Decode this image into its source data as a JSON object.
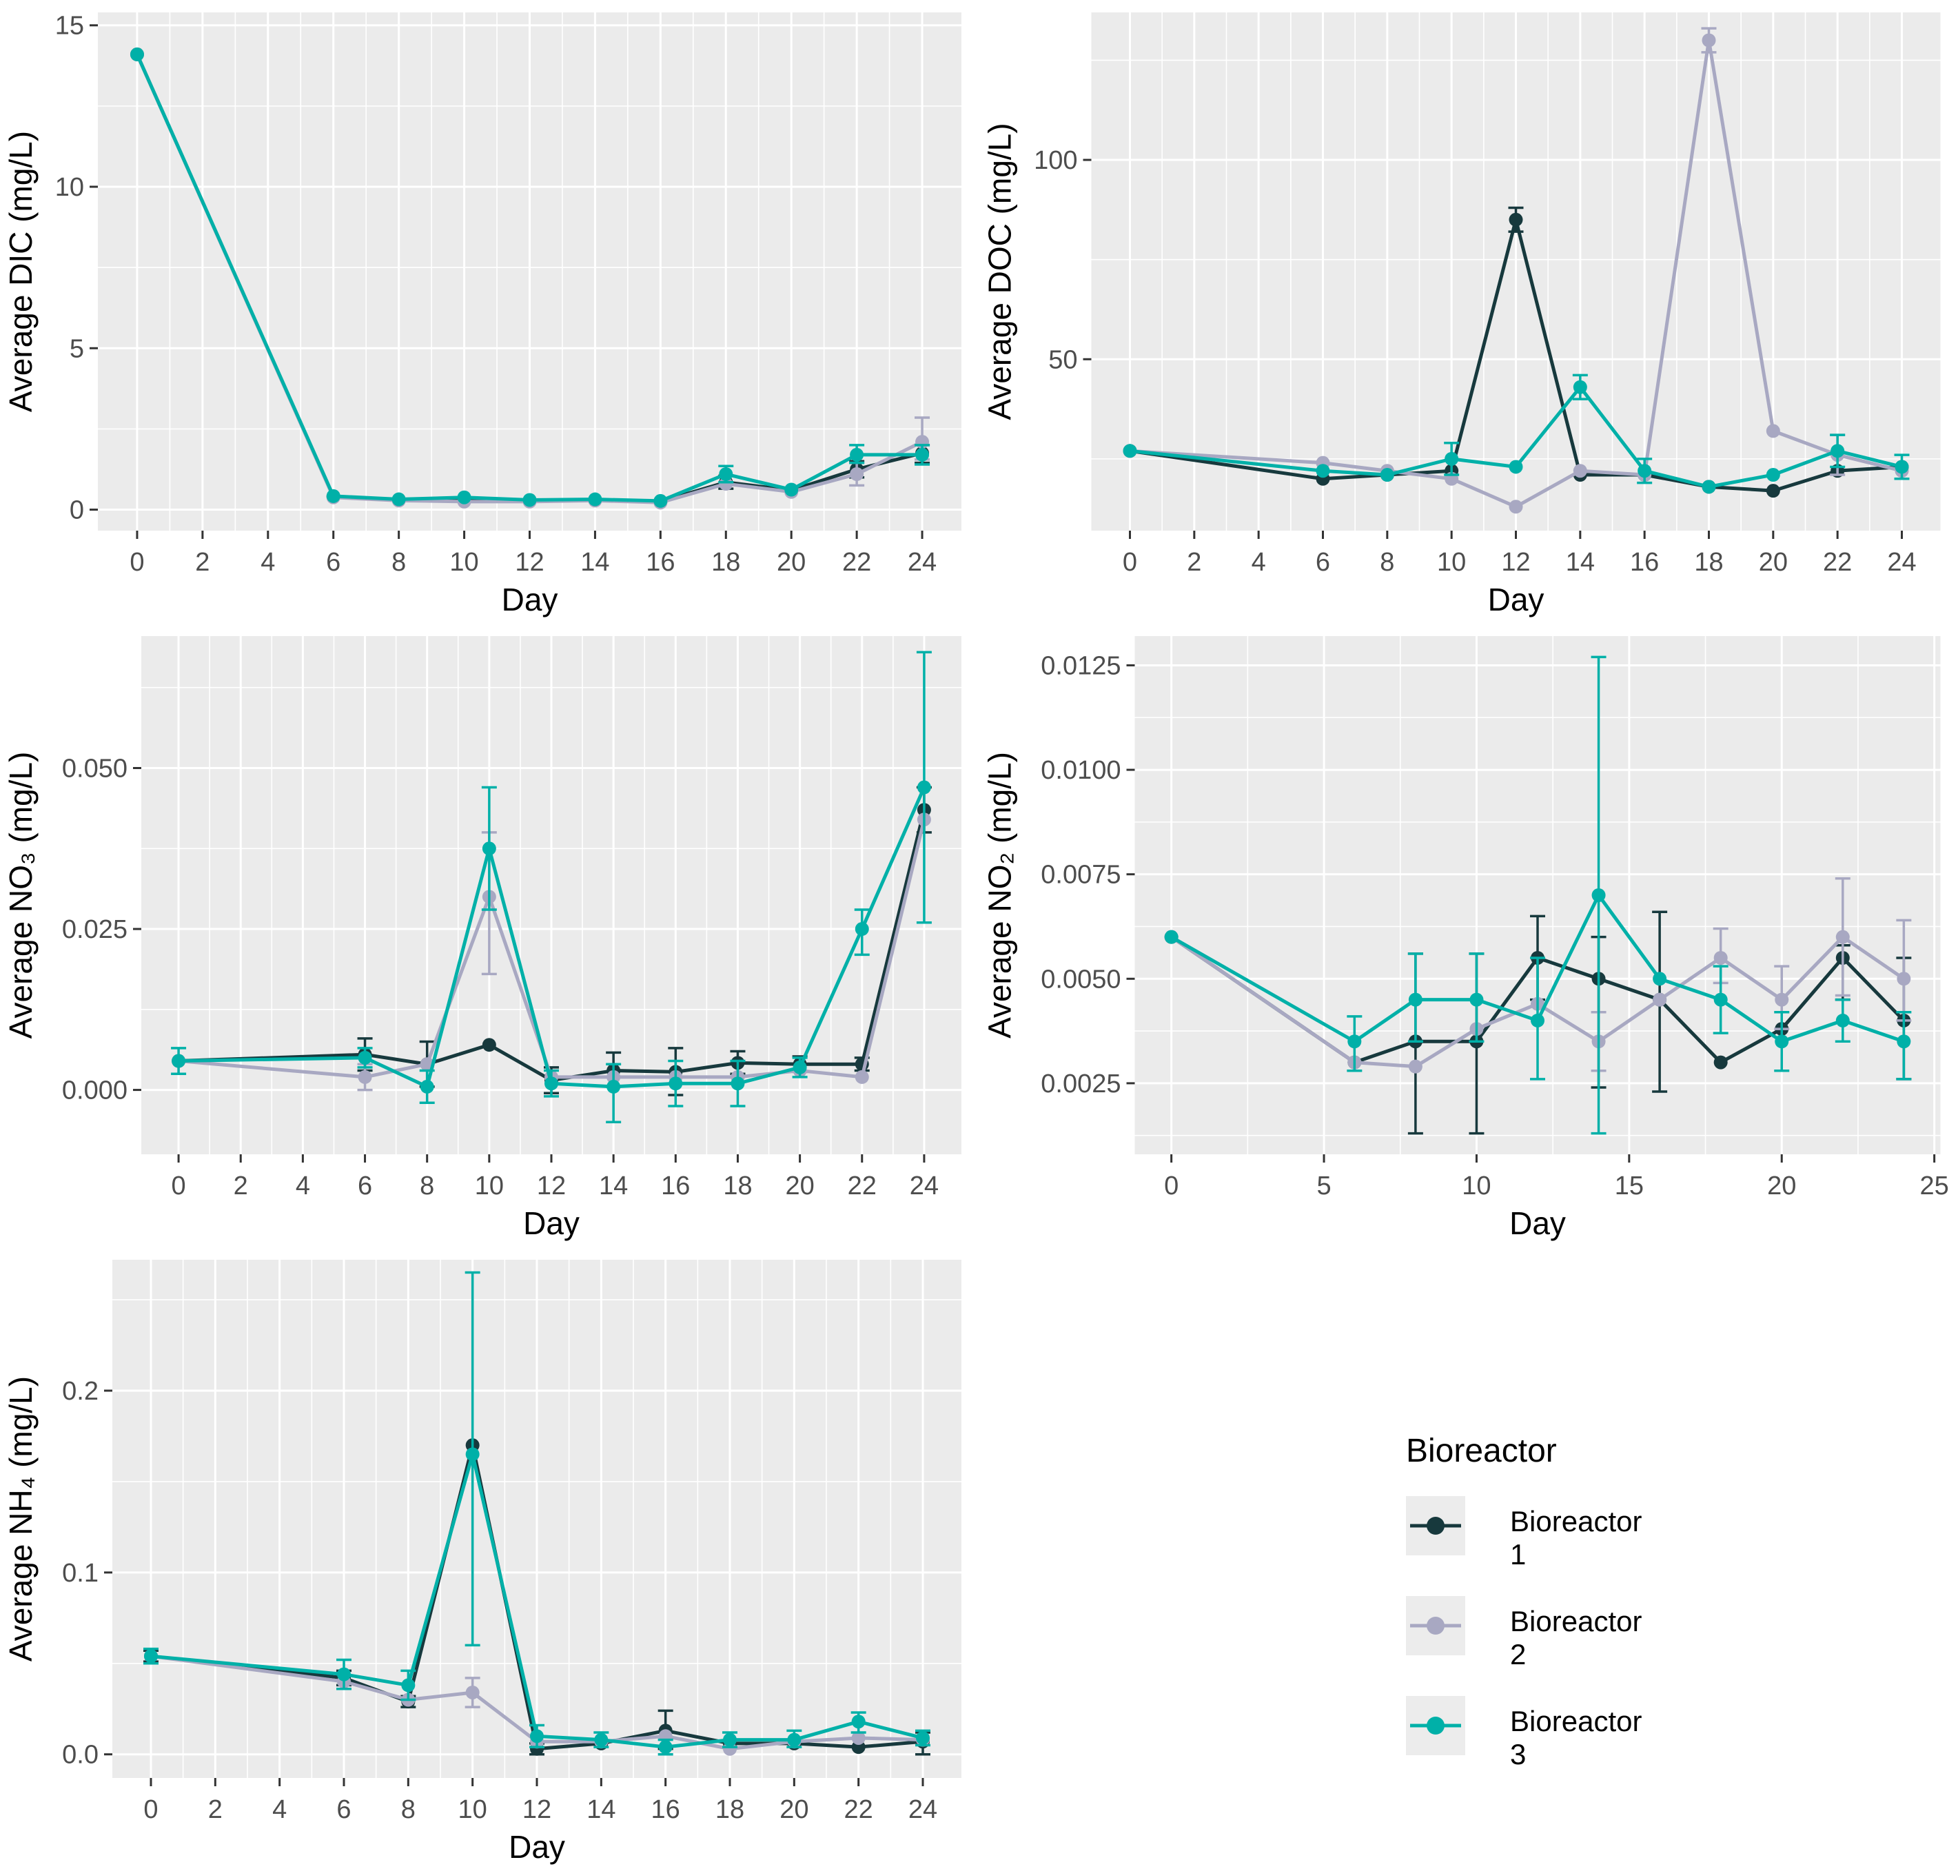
{
  "palette": {
    "bioreactor1": "#17393d",
    "bioreactor2": "#a8a8c2",
    "bioreactor3": "#00b0a8",
    "panel_bg": "#ebebeb",
    "grid": "#ffffff",
    "tick_text": "#4d4d4d",
    "axis_text": "#000000",
    "tick_mark": "#333333",
    "legend_key_bg": "#ececec"
  },
  "legend": {
    "title": "Bioreactor",
    "entries": [
      {
        "label": "Bioreactor 1",
        "color": "bioreactor1"
      },
      {
        "label": "Bioreactor 2",
        "color": "bioreactor2"
      },
      {
        "label": "Bioreactor 3",
        "color": "bioreactor3"
      }
    ]
  },
  "chart_data": [
    {
      "id": "dic",
      "type": "line",
      "ylabel": "Average DIC  (mg/L)",
      "xlabel": "Day",
      "xlim": [
        -1.2,
        25.2
      ],
      "ylim": [
        -0.65,
        15.4
      ],
      "x_ticks": [
        0,
        2,
        4,
        6,
        8,
        10,
        12,
        14,
        16,
        18,
        20,
        22,
        24
      ],
      "x_tick_labels": [
        "0",
        "2",
        "4",
        "6",
        "8",
        "10",
        "12",
        "14",
        "16",
        "18",
        "20",
        "22",
        "24"
      ],
      "x_minor": [
        1,
        3,
        5,
        7,
        9,
        11,
        13,
        15,
        17,
        19,
        21,
        23
      ],
      "y_ticks": [
        0,
        5,
        10,
        15
      ],
      "y_tick_labels": [
        "0",
        "5",
        "10",
        "15"
      ],
      "y_minor": [
        2.5,
        7.5,
        12.5
      ],
      "x": [
        0,
        6,
        8,
        10,
        12,
        14,
        16,
        18,
        20,
        22,
        24
      ],
      "series": [
        {
          "name": "Bioreactor 1",
          "color": "bioreactor1",
          "y": [
            14.1,
            0.4,
            0.3,
            0.32,
            0.28,
            0.3,
            0.25,
            0.85,
            0.6,
            1.25,
            1.75
          ],
          "err_lo": [
            null,
            null,
            null,
            null,
            null,
            null,
            null,
            0.65,
            null,
            1.0,
            1.45
          ],
          "err_hi": [
            null,
            null,
            null,
            null,
            null,
            null,
            null,
            1.05,
            null,
            1.5,
            2.0
          ]
        },
        {
          "name": "Bioreactor 2",
          "color": "bioreactor2",
          "y": [
            14.1,
            0.38,
            0.28,
            0.25,
            0.25,
            0.28,
            0.22,
            0.8,
            0.55,
            1.1,
            2.1
          ],
          "err_lo": [
            null,
            null,
            null,
            null,
            null,
            null,
            null,
            null,
            null,
            0.75,
            1.55
          ],
          "err_hi": [
            null,
            null,
            null,
            null,
            null,
            null,
            null,
            null,
            null,
            1.45,
            2.85
          ]
        },
        {
          "name": "Bioreactor 3",
          "color": "bioreactor3",
          "y": [
            14.1,
            0.42,
            0.32,
            0.38,
            0.3,
            0.32,
            0.27,
            1.1,
            0.62,
            1.7,
            1.7
          ],
          "err_lo": [
            null,
            null,
            null,
            null,
            null,
            null,
            null,
            0.85,
            null,
            1.45,
            1.4
          ],
          "err_hi": [
            null,
            null,
            null,
            null,
            null,
            null,
            null,
            1.35,
            null,
            2.0,
            2.0
          ]
        }
      ]
    },
    {
      "id": "doc",
      "type": "line",
      "ylabel": "Average DOC  (mg/L)",
      "xlabel": "Day",
      "xlim": [
        -1.2,
        25.2
      ],
      "ylim": [
        7,
        137
      ],
      "x_ticks": [
        0,
        2,
        4,
        6,
        8,
        10,
        12,
        14,
        16,
        18,
        20,
        22,
        24
      ],
      "x_tick_labels": [
        "0",
        "2",
        "4",
        "6",
        "8",
        "10",
        "12",
        "14",
        "16",
        "18",
        "20",
        "22",
        "24"
      ],
      "x_minor": [
        1,
        3,
        5,
        7,
        9,
        11,
        13,
        15,
        17,
        19,
        21,
        23
      ],
      "y_ticks": [
        50,
        100
      ],
      "y_tick_labels": [
        "50",
        "100"
      ],
      "y_minor": [
        25,
        75,
        125
      ],
      "x": [
        0,
        6,
        8,
        10,
        12,
        14,
        16,
        18,
        20,
        22,
        24
      ],
      "series": [
        {
          "name": "Bioreactor 1",
          "color": "bioreactor1",
          "y": [
            27,
            20,
            21,
            22,
            85,
            21,
            21,
            18,
            17,
            22,
            23
          ],
          "err_lo": [
            null,
            null,
            null,
            null,
            82,
            null,
            null,
            null,
            null,
            null,
            null
          ],
          "err_hi": [
            null,
            null,
            null,
            null,
            88,
            null,
            null,
            null,
            null,
            null,
            null
          ]
        },
        {
          "name": "Bioreactor 2",
          "color": "bioreactor2",
          "y": [
            27,
            24,
            22,
            20,
            13,
            22,
            21,
            130,
            32,
            26,
            22
          ],
          "err_lo": [
            null,
            null,
            null,
            null,
            null,
            null,
            null,
            127,
            null,
            21,
            null
          ],
          "err_hi": [
            null,
            null,
            null,
            null,
            null,
            null,
            null,
            133,
            null,
            31,
            null
          ]
        },
        {
          "name": "Bioreactor 3",
          "color": "bioreactor3",
          "y": [
            27,
            22,
            21,
            25,
            23,
            43,
            22,
            18,
            21,
            27,
            23
          ],
          "err_lo": [
            null,
            null,
            null,
            21,
            null,
            40,
            19,
            null,
            null,
            23,
            20
          ],
          "err_hi": [
            null,
            null,
            null,
            29,
            null,
            46,
            25,
            null,
            null,
            31,
            26
          ]
        }
      ]
    },
    {
      "id": "no3",
      "type": "line",
      "ylabel": "Average NO₃ (mg/L)",
      "xlabel": "Day",
      "xlim": [
        -1.2,
        25.2
      ],
      "ylim": [
        -0.01,
        0.0705
      ],
      "x_ticks": [
        0,
        2,
        4,
        6,
        8,
        10,
        12,
        14,
        16,
        18,
        20,
        22,
        24
      ],
      "x_tick_labels": [
        "0",
        "2",
        "4",
        "6",
        "8",
        "10",
        "12",
        "14",
        "16",
        "18",
        "20",
        "22",
        "24"
      ],
      "x_minor": [
        1,
        3,
        5,
        7,
        9,
        11,
        13,
        15,
        17,
        19,
        21,
        23
      ],
      "y_ticks": [
        0.0,
        0.025,
        0.05
      ],
      "y_tick_labels": [
        "0.000",
        "0.025",
        "0.050"
      ],
      "y_minor": [
        0.0125,
        0.0375,
        0.0625
      ],
      "x": [
        0,
        6,
        8,
        10,
        12,
        14,
        16,
        18,
        20,
        22,
        24
      ],
      "series": [
        {
          "name": "Bioreactor 1",
          "color": "bioreactor1",
          "y": [
            0.0045,
            0.0055,
            0.004,
            0.007,
            0.0015,
            0.003,
            0.0028,
            0.0042,
            0.004,
            0.004,
            0.0435
          ],
          "err_lo": [
            null,
            0.003,
            0.0005,
            null,
            -0.0005,
            0.0005,
            -0.0008,
            0.0025,
            0.0028,
            0.003,
            0.04
          ],
          "err_hi": [
            null,
            0.008,
            0.0075,
            null,
            0.0035,
            0.0058,
            0.0065,
            0.006,
            0.0052,
            0.005,
            0.047
          ]
        },
        {
          "name": "Bioreactor 2",
          "color": "bioreactor2",
          "y": [
            0.0045,
            0.002,
            0.004,
            0.03,
            0.002,
            0.002,
            0.002,
            0.002,
            0.003,
            0.002,
            0.042
          ],
          "err_lo": [
            null,
            0.0,
            null,
            0.018,
            null,
            null,
            null,
            null,
            null,
            null,
            null
          ],
          "err_hi": [
            null,
            0.004,
            null,
            0.04,
            null,
            null,
            null,
            null,
            null,
            null,
            null
          ]
        },
        {
          "name": "Bioreactor 3",
          "color": "bioreactor3",
          "y": [
            0.0045,
            0.005,
            0.0005,
            0.0375,
            0.001,
            0.0005,
            0.001,
            0.001,
            0.0035,
            0.025,
            0.047
          ],
          "err_lo": [
            0.0025,
            0.0035,
            -0.002,
            0.028,
            -0.001,
            -0.005,
            -0.0025,
            -0.0025,
            0.002,
            0.021,
            0.026
          ],
          "err_hi": [
            0.0065,
            0.0065,
            0.003,
            0.047,
            0.003,
            0.004,
            0.0045,
            0.0045,
            0.005,
            0.028,
            0.068
          ]
        }
      ]
    },
    {
      "id": "no2",
      "type": "line",
      "ylabel": "Average NO₂  (mg/L)",
      "xlabel": "Day",
      "xlim": [
        -1.2,
        25.2
      ],
      "ylim": [
        0.0008,
        0.0132
      ],
      "x_ticks": [
        0,
        5,
        10,
        15,
        20,
        25
      ],
      "x_tick_labels": [
        "0",
        "5",
        "10",
        "15",
        "20",
        "25"
      ],
      "x_minor": [
        2.5,
        7.5,
        12.5,
        17.5,
        22.5
      ],
      "y_ticks": [
        0.0025,
        0.005,
        0.0075,
        0.01,
        0.0125
      ],
      "y_tick_labels": [
        "0.0025",
        "0.0050",
        "0.0075",
        "0.0100",
        "0.0125"
      ],
      "y_minor": [
        0.00125,
        0.00375,
        0.00625,
        0.00875,
        0.01125
      ],
      "x": [
        0,
        6,
        8,
        10,
        12,
        14,
        16,
        18,
        20,
        22,
        24
      ],
      "series": [
        {
          "name": "Bioreactor 1",
          "color": "bioreactor1",
          "y": [
            0.006,
            0.003,
            0.0035,
            0.0035,
            0.0055,
            0.005,
            0.0045,
            0.003,
            0.0038,
            0.0055,
            0.004
          ],
          "err_lo": [
            null,
            null,
            0.0013,
            0.0013,
            0.0045,
            0.0024,
            0.0023,
            null,
            null,
            0.0045,
            0.0026
          ],
          "err_hi": [
            null,
            null,
            0.0056,
            0.0056,
            0.0065,
            0.006,
            0.0066,
            null,
            null,
            0.0058,
            0.0055
          ]
        },
        {
          "name": "Bioreactor 2",
          "color": "bioreactor2",
          "y": [
            0.006,
            0.003,
            0.0029,
            0.0038,
            0.0044,
            0.0035,
            0.0045,
            0.0055,
            0.0045,
            0.006,
            0.005
          ],
          "err_lo": [
            null,
            null,
            null,
            null,
            null,
            0.0028,
            null,
            0.0049,
            0.0038,
            0.0046,
            0.004
          ],
          "err_hi": [
            null,
            null,
            null,
            null,
            null,
            0.0042,
            null,
            0.0062,
            0.0053,
            0.0074,
            0.0064
          ]
        },
        {
          "name": "Bioreactor 3",
          "color": "bioreactor3",
          "y": [
            0.006,
            0.0035,
            0.0045,
            0.0045,
            0.004,
            0.007,
            0.005,
            0.0045,
            0.0035,
            0.004,
            0.0035
          ],
          "err_lo": [
            null,
            0.0028,
            0.0035,
            0.0035,
            0.0026,
            0.0013,
            null,
            0.0037,
            0.0028,
            0.0035,
            0.0026
          ],
          "err_hi": [
            null,
            0.0041,
            0.0056,
            0.0056,
            0.0055,
            0.0127,
            null,
            0.0053,
            0.0042,
            0.0045,
            0.0042
          ]
        }
      ]
    },
    {
      "id": "nh4",
      "type": "line",
      "ylabel": "Average NH₄  (mg/L)",
      "xlabel": "Day",
      "xlim": [
        -1.2,
        25.2
      ],
      "ylim": [
        -0.013,
        0.272
      ],
      "x_ticks": [
        0,
        2,
        4,
        6,
        8,
        10,
        12,
        14,
        16,
        18,
        20,
        22,
        24
      ],
      "x_tick_labels": [
        "0",
        "2",
        "4",
        "6",
        "8",
        "10",
        "12",
        "14",
        "16",
        "18",
        "20",
        "22",
        "24"
      ],
      "x_minor": [
        1,
        3,
        5,
        7,
        9,
        11,
        13,
        15,
        17,
        19,
        21,
        23
      ],
      "y_ticks": [
        0.0,
        0.1,
        0.2
      ],
      "y_tick_labels": [
        "0.0",
        "0.1",
        "0.2"
      ],
      "y_minor": [
        0.05,
        0.15,
        0.25
      ],
      "x": [
        0,
        6,
        8,
        10,
        12,
        14,
        16,
        18,
        20,
        22,
        24
      ],
      "series": [
        {
          "name": "Bioreactor 1",
          "color": "bioreactor1",
          "y": [
            0.054,
            0.042,
            0.029,
            0.17,
            0.003,
            0.006,
            0.013,
            0.006,
            0.006,
            0.004,
            0.007
          ],
          "err_lo": [
            0.051,
            0.038,
            0.026,
            null,
            0.0,
            null,
            0.003,
            null,
            null,
            null,
            0.0
          ],
          "err_hi": [
            0.057,
            0.046,
            0.032,
            null,
            0.006,
            null,
            0.024,
            null,
            null,
            null,
            0.012
          ]
        },
        {
          "name": "Bioreactor 2",
          "color": "bioreactor2",
          "y": [
            0.054,
            0.04,
            0.03,
            0.034,
            0.007,
            0.007,
            0.01,
            0.003,
            0.007,
            0.009,
            0.008
          ],
          "err_lo": [
            null,
            null,
            null,
            0.026,
            null,
            null,
            null,
            null,
            null,
            null,
            null
          ],
          "err_hi": [
            null,
            null,
            null,
            0.042,
            null,
            null,
            null,
            null,
            null,
            null,
            null
          ]
        },
        {
          "name": "Bioreactor 3",
          "color": "bioreactor3",
          "y": [
            0.054,
            0.044,
            0.038,
            0.165,
            0.01,
            0.008,
            0.004,
            0.008,
            0.008,
            0.018,
            0.009
          ],
          "err_lo": [
            0.05,
            0.036,
            0.03,
            0.06,
            0.004,
            0.004,
            0.0,
            0.004,
            0.004,
            0.012,
            0.005
          ],
          "err_hi": [
            0.058,
            0.052,
            0.046,
            0.265,
            0.016,
            0.012,
            0.008,
            0.012,
            0.013,
            0.023,
            0.013
          ]
        }
      ]
    }
  ]
}
